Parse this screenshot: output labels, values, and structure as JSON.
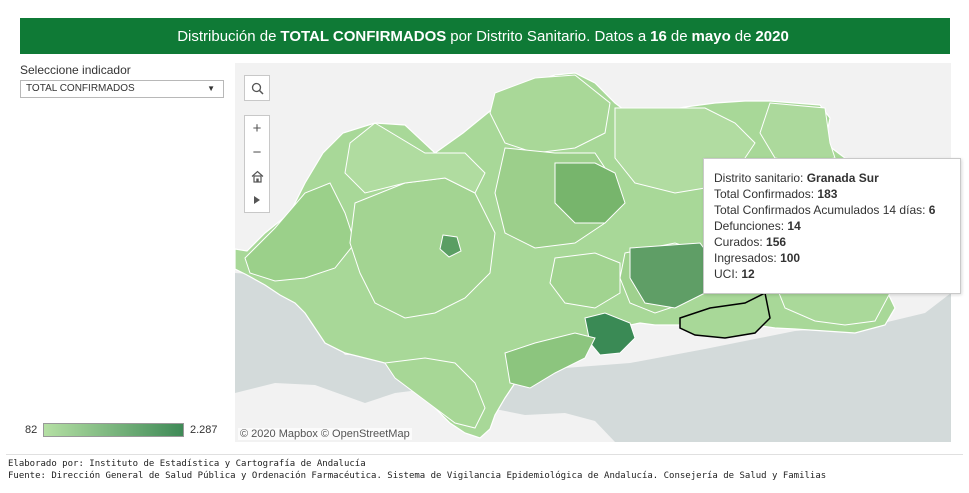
{
  "banner": {
    "pre": "Distribución de",
    "indicator": "TOTAL CONFIRMADOS",
    "mid": "por Distrito Sanitario. Datos a",
    "day": "16",
    "de": "de",
    "month": "mayo",
    "de2": "de",
    "year": "2020"
  },
  "selector": {
    "label": "Seleccione indicador",
    "value": "TOTAL CONFIRMADOS"
  },
  "map_controls": {
    "search": "search-icon",
    "zoom_in": "+",
    "zoom_out": "−",
    "home": "home-icon",
    "play": "play-icon"
  },
  "attribution": "© 2020 Mapbox © OpenStreetMap",
  "tooltip": {
    "district_label": "Distrito sanitario:",
    "district_value": "Granada Sur",
    "total_label": "Total Confirmados:",
    "total_value": "183",
    "acum_label": "Total Confirmados Acumulados 14 días:",
    "acum_value": "6",
    "def_label": "Defunciones:",
    "def_value": "14",
    "cur_label": "Curados:",
    "cur_value": "156",
    "ing_label": "Ingresados:",
    "ing_value": "100",
    "uci_label": "UCI:",
    "uci_value": "12"
  },
  "legend": {
    "min": "82",
    "max": "2.287",
    "color_min": "#b5e0a4",
    "color_max": "#3f8a57"
  },
  "footer": {
    "line1": "Elaborado por: Instituto de Estadística y Cartografía de Andalucía",
    "line2": "Fuente: Dirección General de Salud Pública y Ordenación Farmacéutica. Sistema de Vigilancia Epidemiológica de Andalucía. Consejería de Salud y Familias"
  },
  "colors": {
    "banner": "#0f7a36",
    "sea": "#d3dada",
    "land": "#f2f2f2"
  }
}
